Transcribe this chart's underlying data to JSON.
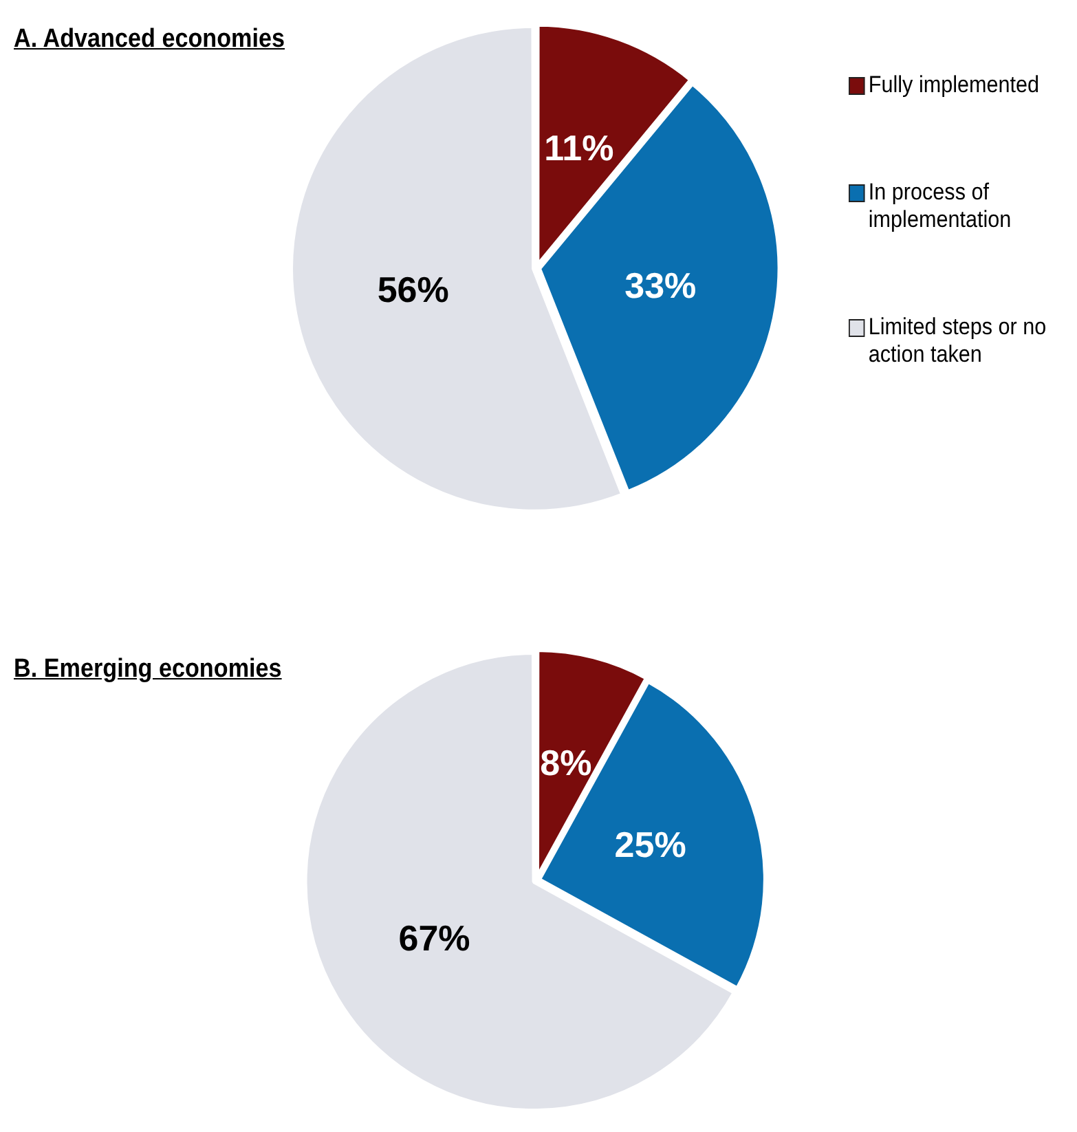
{
  "chart_data": [
    {
      "type": "pie",
      "title": "A. Advanced economies",
      "categories": [
        "Fully implemented",
        "In process of implementation",
        "Limited steps or no action taken"
      ],
      "values": [
        11,
        33,
        56
      ],
      "colors": [
        "#7a0c0c",
        "#0a6fb0",
        "#e0e2e9"
      ],
      "value_labels": [
        "11%",
        "33%",
        "56%"
      ],
      "legend": "right"
    },
    {
      "type": "pie",
      "title": "B. Emerging economies",
      "categories": [
        null,
        null,
        null
      ],
      "values": [
        8,
        25,
        67
      ],
      "colors": [
        "#7a0c0c",
        "#0a6fb0",
        "#e0e2e9"
      ],
      "value_labels": [
        "8%",
        "25%",
        "67%"
      ],
      "legend": false
    }
  ]
}
